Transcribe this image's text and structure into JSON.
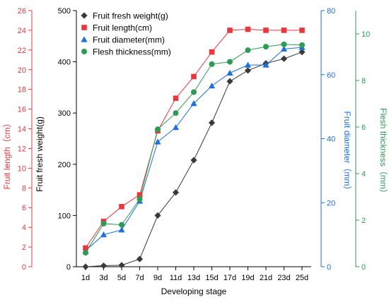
{
  "chart_data": {
    "type": "line",
    "categories": [
      "1d",
      "3d",
      "5d",
      "7d",
      "9d",
      "11d",
      "13d",
      "15d",
      "17d",
      "19d",
      "21d",
      "23d",
      "25d"
    ],
    "xlabel": "Developing stage",
    "axes": {
      "length": {
        "label": "Fruit length（cm）",
        "range": [
          0,
          26
        ],
        "ticks": [
          0,
          2,
          4,
          6,
          8,
          10,
          12,
          14,
          16,
          18,
          20,
          22,
          24,
          26
        ],
        "color": "#e8383d"
      },
      "weight": {
        "label": "Fruit fresh weight(g)",
        "range": [
          0,
          500
        ],
        "ticks": [
          0,
          100,
          200,
          300,
          400,
          500
        ],
        "color": "#000000"
      },
      "diameter": {
        "label": "Fruit diameter（mm）",
        "range": [
          0,
          80
        ],
        "ticks": [
          0,
          20,
          40,
          60,
          80
        ],
        "color": "#1e6fd9"
      },
      "flesh": {
        "label": "Flesh thickness（mm）",
        "range": [
          0,
          11
        ],
        "ticks": [
          0,
          2,
          4,
          6,
          8,
          10
        ],
        "color": "#2e9a55"
      }
    },
    "series": [
      {
        "name": "Fruit fresh weight(g)",
        "axis": "weight",
        "marker": "diamond",
        "color": "#3a3a3a",
        "values": [
          0,
          2,
          3,
          15,
          100,
          145,
          208,
          281,
          362,
          383,
          397,
          406,
          419
        ]
      },
      {
        "name": "Fruit length(cm)",
        "axis": "length",
        "marker": "square",
        "color": "#e8383d",
        "values": [
          1.9,
          4.6,
          6.1,
          7.3,
          13.8,
          17.1,
          19.3,
          21.8,
          24.0,
          24.1,
          24.0,
          24.0,
          24.0
        ]
      },
      {
        "name": "Fruit diameter(mm)",
        "axis": "diameter",
        "marker": "triangle",
        "color": "#1e6fd9",
        "values": [
          5,
          10,
          11.5,
          20.5,
          39,
          43.5,
          51,
          56.5,
          60.5,
          63,
          63,
          68,
          68.5
        ]
      },
      {
        "name": "Flesh thickness(mm)",
        "axis": "flesh",
        "marker": "circle",
        "color": "#2e9a55",
        "values": [
          0.6,
          1.85,
          1.8,
          2.9,
          5.9,
          6.6,
          7.5,
          8.7,
          8.8,
          9.3,
          9.45,
          9.55,
          9.52
        ]
      }
    ],
    "legend_position": "top-left",
    "grid": false
  }
}
